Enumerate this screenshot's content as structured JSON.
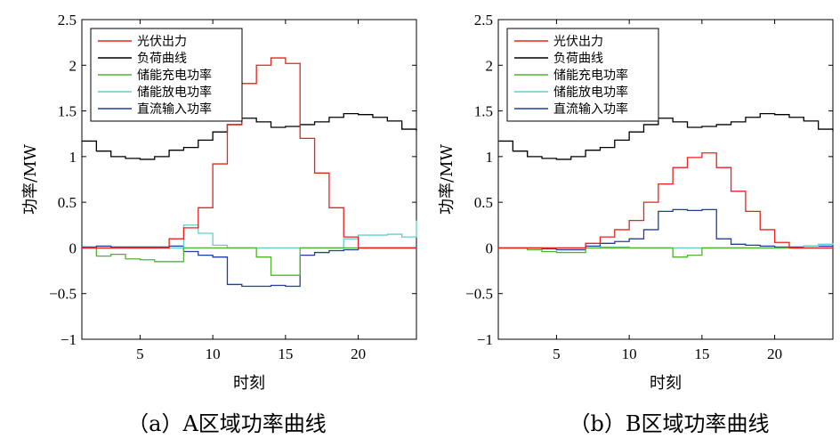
{
  "figure": {
    "captions": [
      "（a）A区域功率曲线",
      "（b）B区域功率曲线"
    ]
  },
  "chart_data": [
    {
      "type": "line",
      "step": true,
      "title": "（a）A区域功率曲线",
      "xlabel": "时刻",
      "ylabel": "功率/MW",
      "xlim": [
        1,
        24
      ],
      "ylim": [
        -1,
        2.5
      ],
      "xticks": [
        5,
        10,
        15,
        20
      ],
      "yticks": [
        -1,
        -0.5,
        0,
        0.5,
        1,
        1.5,
        2,
        2.5
      ],
      "ytick_labels": [
        "−1",
        "−0.5",
        "0",
        "0.5",
        "1",
        "1.5",
        "2",
        "2.5"
      ],
      "legend_position": "top-left",
      "series": [
        {
          "name": "光伏出力",
          "color": "#e8221c",
          "x": [
            1,
            2,
            3,
            4,
            5,
            6,
            7,
            8,
            9,
            10,
            11,
            12,
            13,
            14,
            15,
            16,
            17,
            18,
            19,
            20,
            21,
            22,
            23,
            24
          ],
          "values": [
            0,
            0,
            0,
            0,
            0,
            0,
            0.1,
            0.22,
            0.44,
            0.92,
            1.35,
            1.8,
            2.0,
            2.08,
            2.02,
            1.2,
            0.82,
            0.44,
            0.12,
            0,
            0,
            0,
            0,
            0
          ]
        },
        {
          "name": "负荷曲线",
          "color": "#000000",
          "x": [
            1,
            2,
            3,
            4,
            5,
            6,
            7,
            8,
            9,
            10,
            11,
            12,
            13,
            14,
            15,
            16,
            17,
            18,
            19,
            20,
            21,
            22,
            23,
            24
          ],
          "values": [
            1.17,
            1.06,
            1.0,
            0.98,
            0.97,
            1.0,
            1.07,
            1.1,
            1.18,
            1.27,
            1.35,
            1.42,
            1.38,
            1.32,
            1.33,
            1.35,
            1.38,
            1.43,
            1.47,
            1.46,
            1.43,
            1.39,
            1.3,
            1.28
          ]
        },
        {
          "name": "储能充电功率",
          "color": "#54b32e",
          "x": [
            1,
            2,
            3,
            4,
            5,
            6,
            7,
            8,
            9,
            10,
            11,
            12,
            13,
            14,
            15,
            16,
            17,
            18,
            19,
            20,
            21,
            22,
            23,
            24
          ],
          "values": [
            0,
            -0.09,
            -0.07,
            -0.12,
            -0.13,
            -0.15,
            -0.15,
            0,
            0,
            0,
            0,
            0,
            -0.1,
            -0.3,
            -0.3,
            0,
            0,
            0,
            0,
            0,
            0,
            0,
            0,
            0
          ]
        },
        {
          "name": "储能放电功率",
          "color": "#5fcfd0",
          "x": [
            1,
            2,
            3,
            4,
            5,
            6,
            7,
            8,
            9,
            10,
            11,
            12,
            13,
            14,
            15,
            16,
            17,
            18,
            19,
            20,
            21,
            22,
            23,
            24
          ],
          "values": [
            0,
            0,
            0,
            0,
            0,
            0,
            0,
            0.25,
            0.16,
            0.03,
            0,
            0,
            0,
            0,
            0,
            0,
            0,
            0,
            0.1,
            0.14,
            0.14,
            0.15,
            0.12,
            0.3
          ]
        },
        {
          "name": "直流输入功率",
          "color": "#1f3f9f",
          "x": [
            1,
            2,
            3,
            4,
            5,
            6,
            7,
            8,
            9,
            10,
            11,
            12,
            13,
            14,
            15,
            16,
            17,
            18,
            19,
            20,
            21,
            22,
            23,
            24
          ],
          "values": [
            0.01,
            0.02,
            0.01,
            0.01,
            0.01,
            0.01,
            0.02,
            -0.04,
            -0.08,
            -0.1,
            -0.4,
            -0.42,
            -0.42,
            -0.41,
            -0.42,
            -0.08,
            -0.05,
            -0.03,
            -0.02,
            0,
            0,
            0,
            0,
            0.01
          ]
        }
      ]
    },
    {
      "type": "line",
      "step": true,
      "title": "（b）B区域功率曲线",
      "xlabel": "时刻",
      "ylabel": "功率/MW",
      "xlim": [
        1,
        24
      ],
      "ylim": [
        -1,
        2.5
      ],
      "xticks": [
        5,
        10,
        15,
        20
      ],
      "yticks": [
        -1,
        -0.5,
        0,
        0.5,
        1,
        1.5,
        2,
        2.5
      ],
      "ytick_labels": [
        "−1",
        "−0.5",
        "0",
        "0.5",
        "1",
        "1.5",
        "2",
        "2.5"
      ],
      "legend_position": "top-left",
      "series": [
        {
          "name": "光伏出力",
          "color": "#e8221c",
          "x": [
            1,
            2,
            3,
            4,
            5,
            6,
            7,
            8,
            9,
            10,
            11,
            12,
            13,
            14,
            15,
            16,
            17,
            18,
            19,
            20,
            21,
            22,
            23,
            24
          ],
          "values": [
            0,
            0,
            0,
            0,
            0,
            0,
            0.05,
            0.12,
            0.2,
            0.3,
            0.5,
            0.7,
            0.88,
            0.99,
            1.04,
            0.88,
            0.62,
            0.4,
            0.2,
            0.06,
            0,
            0,
            0,
            0
          ]
        },
        {
          "name": "负荷曲线",
          "color": "#000000",
          "x": [
            1,
            2,
            3,
            4,
            5,
            6,
            7,
            8,
            9,
            10,
            11,
            12,
            13,
            14,
            15,
            16,
            17,
            18,
            19,
            20,
            21,
            22,
            23,
            24
          ],
          "values": [
            1.17,
            1.06,
            1.0,
            0.98,
            0.97,
            1.0,
            1.07,
            1.1,
            1.18,
            1.27,
            1.35,
            1.42,
            1.38,
            1.32,
            1.33,
            1.35,
            1.38,
            1.43,
            1.47,
            1.46,
            1.43,
            1.39,
            1.3,
            1.28
          ]
        },
        {
          "name": "储能充电功率",
          "color": "#54b32e",
          "x": [
            1,
            2,
            3,
            4,
            5,
            6,
            7,
            8,
            9,
            10,
            11,
            12,
            13,
            14,
            15,
            16,
            17,
            18,
            19,
            20,
            21,
            22,
            23,
            24
          ],
          "values": [
            0,
            0,
            -0.02,
            -0.04,
            -0.05,
            -0.05,
            0,
            0,
            0,
            0,
            0,
            0,
            -0.1,
            -0.08,
            0,
            0,
            0,
            0,
            0,
            0,
            0,
            0,
            0,
            0
          ]
        },
        {
          "name": "储能放电功率",
          "color": "#5fcfd0",
          "x": [
            1,
            2,
            3,
            4,
            5,
            6,
            7,
            8,
            9,
            10,
            11,
            12,
            13,
            14,
            15,
            16,
            17,
            18,
            19,
            20,
            21,
            22,
            23,
            24
          ],
          "values": [
            0,
            0,
            0,
            0,
            0,
            0,
            0,
            0.01,
            0.01,
            0,
            0,
            0,
            0,
            0,
            0,
            0,
            0,
            0,
            0,
            0,
            0,
            0.02,
            0.04,
            0.05
          ]
        },
        {
          "name": "直流输入功率",
          "color": "#1f3f9f",
          "x": [
            1,
            2,
            3,
            4,
            5,
            6,
            7,
            8,
            9,
            10,
            11,
            12,
            13,
            14,
            15,
            16,
            17,
            18,
            19,
            20,
            21,
            22,
            23,
            24
          ],
          "values": [
            0,
            0,
            0,
            -0.01,
            -0.02,
            -0.02,
            0.02,
            0.05,
            0.07,
            0.1,
            0.2,
            0.4,
            0.42,
            0.41,
            0.42,
            0.1,
            0.04,
            0.03,
            0.02,
            0.01,
            0.01,
            0.02,
            0.02,
            0.02
          ]
        }
      ]
    }
  ]
}
